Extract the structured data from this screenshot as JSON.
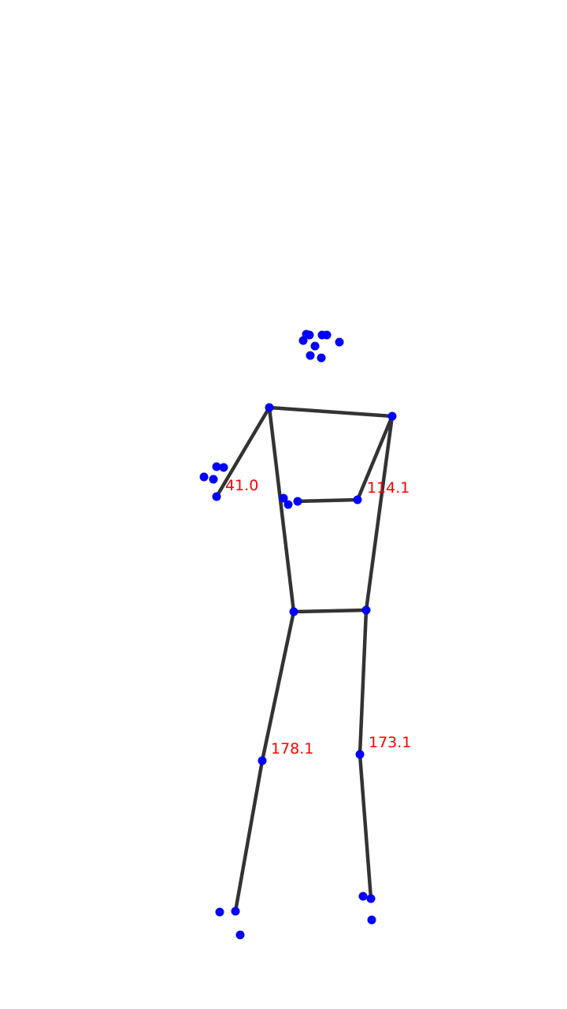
{
  "colors": {
    "background": "#ffffff",
    "bone": "#333333",
    "landmark": "#0000ff",
    "angle_text": "#ff0000"
  },
  "angle_labels": [
    {
      "joint": "left-elbow",
      "text": "41.0"
    },
    {
      "joint": "right-elbow",
      "text": "114.1"
    },
    {
      "joint": "left-knee",
      "text": "178.1"
    },
    {
      "joint": "right-knee",
      "text": "173.1"
    }
  ]
}
